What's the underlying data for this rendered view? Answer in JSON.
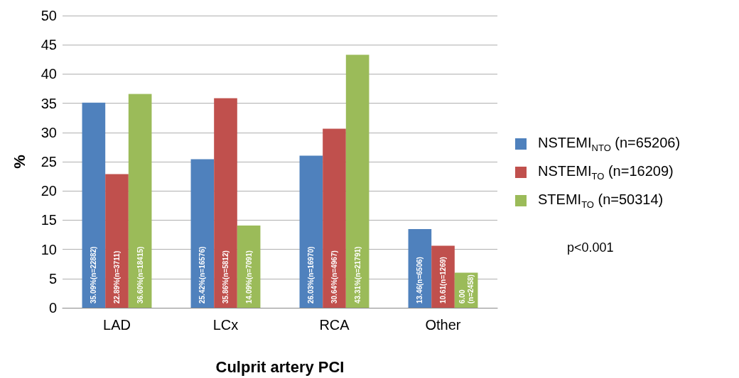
{
  "chart_data": {
    "type": "bar",
    "xlabel": "Culprit artery PCI",
    "ylabel": "%",
    "categories": [
      "LAD",
      "LCx",
      "RCA",
      "Other"
    ],
    "series": [
      {
        "name": "NSTEMI$_{NTO}$ (n=65206)",
        "color": "#4f81bd",
        "values": [
          35.09,
          25.42,
          26.03,
          13.46
        ],
        "value_labels": [
          "35.09%(n=22882)",
          "25.42%(n=16576)",
          "26.03%(n=16970)",
          "13.46(n=6506)"
        ]
      },
      {
        "name": "NSTEMI$_{TO}$ (n=16209)",
        "color": "#c0504d",
        "values": [
          22.89,
          35.86,
          30.64,
          10.61
        ],
        "value_labels": [
          "22.89%(n=3711)",
          "35.86%(n=5812)",
          "30.64%(n=4967)",
          "10.61(n=1269)"
        ]
      },
      {
        "name": "STEMI$_{TO}$ (n=50314)",
        "color": "#9bbb59",
        "values": [
          36.6,
          14.09,
          43.31,
          6.0
        ],
        "value_labels": [
          "36.60%(n=18415)",
          "14.09%(n=7091)",
          "43.31%(n=21791)",
          "6.00\n(n=2458)"
        ]
      }
    ],
    "ylim": [
      0,
      50
    ],
    "yticks": [
      0,
      5,
      10,
      15,
      20,
      25,
      30,
      35,
      40,
      45,
      50
    ],
    "grid": "y",
    "legend": "right",
    "annotations": [
      "p<0.001"
    ]
  }
}
